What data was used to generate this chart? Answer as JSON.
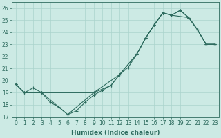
{
  "xlabel": "Humidex (Indice chaleur)",
  "ylabel": "",
  "xlim": [
    -0.5,
    23.5
  ],
  "ylim": [
    17,
    26.5
  ],
  "yticks": [
    17,
    18,
    19,
    20,
    21,
    22,
    23,
    24,
    25,
    26
  ],
  "xticks": [
    0,
    1,
    2,
    3,
    4,
    5,
    6,
    7,
    8,
    9,
    10,
    11,
    12,
    13,
    14,
    15,
    16,
    17,
    18,
    19,
    20,
    21,
    22,
    23
  ],
  "bg_color": "#cceae4",
  "grid_color": "#aad4cc",
  "line_color": "#2d6b5e",
  "line1_x": [
    0,
    1,
    2,
    3,
    4,
    5,
    6,
    7,
    8,
    9,
    10,
    11,
    12,
    13,
    14,
    15,
    16,
    17,
    18,
    19,
    20,
    21,
    22,
    23
  ],
  "line1_y": [
    19.7,
    19.0,
    19.4,
    19.0,
    18.2,
    17.8,
    17.2,
    17.5,
    18.2,
    18.8,
    19.2,
    19.6,
    20.5,
    21.1,
    22.2,
    23.5,
    24.6,
    25.6,
    25.4,
    25.8,
    25.2,
    24.2,
    23.0,
    23.0
  ],
  "line2_x": [
    0,
    1,
    3,
    9,
    12,
    14,
    15,
    16,
    17,
    18,
    20,
    21,
    22,
    23
  ],
  "line2_y": [
    19.7,
    19.0,
    19.0,
    19.0,
    20.5,
    22.2,
    23.5,
    24.6,
    25.6,
    25.4,
    25.2,
    24.2,
    23.0,
    23.0
  ],
  "line3_x": [
    0,
    1,
    3,
    6,
    9,
    11,
    12,
    14,
    15,
    16,
    17,
    18,
    19,
    20,
    21,
    22,
    23
  ],
  "line3_y": [
    19.7,
    19.0,
    19.0,
    17.2,
    19.0,
    19.6,
    20.5,
    22.2,
    23.5,
    24.6,
    25.6,
    25.4,
    25.8,
    25.2,
    24.2,
    23.0,
    23.0
  ]
}
